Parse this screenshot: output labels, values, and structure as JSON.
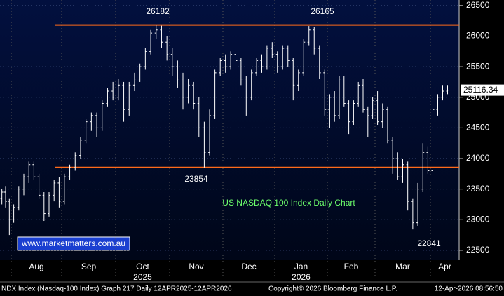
{
  "chart_data": {
    "type": "ohlc",
    "title": "US NASDAQ 100 Index Daily Chart",
    "watermark": "www.marketmatters.com.au",
    "footer": {
      "left": "NDX Index (Nasdaq-100 Index) Graph 217 Daily 12APR2025-12APR2026",
      "center": "Copyright© 2026 Bloomberg Finance L.P.",
      "right": "12-Apr-2026 08:56:50"
    },
    "categories": [
      null,
      "Aug",
      "Sep",
      "Oct",
      "Nov",
      "Dec",
      "Jan",
      "Feb",
      "Mar",
      "Apr"
    ],
    "years": [
      "2025",
      "2026"
    ],
    "bar_color": "#ffffff",
    "level_color": "#ff6a1a",
    "levels": [
      26182,
      23854
    ],
    "peaks": [
      26182,
      26165
    ],
    "troughs": [
      23854,
      22841
    ],
    "ylim": [
      22350,
      26590
    ],
    "yticks": [
      22500,
      23000,
      23500,
      24000,
      24500,
      25000,
      25500,
      26000,
      26500
    ],
    "grid": true,
    "bars": [
      [
        [
          23350,
          23500,
          23250,
          23450
        ],
        [
          23450,
          23550,
          23200,
          23300
        ],
        [
          23300,
          23350,
          22750,
          23000
        ]
      ],
      [
        [
          23000,
          23250,
          22950,
          23200
        ],
        [
          23200,
          23550,
          23150,
          23500
        ],
        [
          23500,
          23750,
          23400,
          23700
        ],
        [
          23700,
          23950,
          23600,
          23900
        ],
        [
          23900,
          23950,
          23650,
          23700
        ],
        [
          23700,
          23750,
          23350,
          23400
        ],
        [
          23400,
          23450,
          22980,
          23100
        ],
        [
          23100,
          23450,
          23050,
          23400
        ],
        [
          23400,
          23650,
          23300,
          23600
        ],
        [
          23600,
          23700,
          23200,
          23300
        ]
      ],
      [
        [
          23300,
          23750,
          23250,
          23700
        ],
        [
          23700,
          23900,
          23650,
          23850
        ],
        [
          23850,
          24100,
          23800,
          24050
        ],
        [
          24050,
          24350,
          24000,
          24300
        ],
        [
          24300,
          24650,
          24250,
          24600
        ],
        [
          24600,
          24750,
          24450,
          24700
        ],
        [
          24700,
          24750,
          24350,
          24500
        ],
        [
          24500,
          24950,
          24450,
          24900
        ],
        [
          24900,
          25150,
          24850,
          25100
        ],
        [
          25100,
          25250,
          24950,
          25000
        ]
      ],
      [
        [
          25000,
          25300,
          24950,
          25200
        ],
        [
          25200,
          25250,
          24600,
          24800
        ],
        [
          24800,
          25250,
          24700,
          25200
        ],
        [
          25200,
          25400,
          25100,
          25300
        ],
        [
          25300,
          25550,
          25250,
          25500
        ],
        [
          25500,
          25800,
          25450,
          25750
        ],
        [
          25750,
          26100,
          25700,
          26050
        ],
        [
          26050,
          26182,
          25950,
          26100
        ],
        [
          26100,
          26170,
          25800,
          25900
        ],
        [
          25900,
          26000,
          25600,
          25700
        ]
      ],
      [
        [
          25700,
          25800,
          25350,
          25500
        ],
        [
          25500,
          25600,
          25150,
          25300
        ],
        [
          25300,
          25400,
          24800,
          25000
        ],
        [
          25000,
          25300,
          24900,
          25200
        ],
        [
          25200,
          25250,
          24800,
          24900
        ],
        [
          24900,
          25000,
          24350,
          24500
        ],
        [
          24500,
          24600,
          23854,
          24100
        ],
        [
          24100,
          24800,
          24050,
          24700
        ],
        [
          24700,
          25450,
          24650,
          25400
        ],
        [
          25400,
          25650,
          25350,
          25600
        ]
      ],
      [
        [
          25600,
          25700,
          25400,
          25500
        ],
        [
          25500,
          25750,
          25450,
          25700
        ],
        [
          25700,
          25800,
          25500,
          25600
        ],
        [
          25600,
          25650,
          25200,
          25300
        ],
        [
          25300,
          25350,
          24700,
          25000
        ],
        [
          25000,
          25450,
          24950,
          25400
        ],
        [
          25400,
          25650,
          25350,
          25600
        ],
        [
          25600,
          25700,
          25400,
          25500
        ],
        [
          25500,
          25850,
          25450,
          25800
        ],
        [
          25800,
          25900,
          25650,
          25700
        ]
      ],
      [
        [
          25700,
          25750,
          25400,
          25500
        ],
        [
          25500,
          25850,
          25450,
          25800
        ],
        [
          25800,
          25850,
          25500,
          25600
        ],
        [
          25600,
          25650,
          24950,
          25200
        ],
        [
          25200,
          25450,
          25100,
          25400
        ],
        [
          25400,
          25950,
          25350,
          25900
        ],
        [
          25900,
          26165,
          25850,
          26100
        ],
        [
          26100,
          26150,
          25700,
          25800
        ],
        [
          25800,
          25850,
          25300,
          25400
        ],
        [
          25400,
          25450,
          24700,
          24800
        ]
      ],
      [
        [
          24800,
          25050,
          24500,
          25000
        ],
        [
          25000,
          25100,
          24600,
          24700
        ],
        [
          24700,
          25350,
          24650,
          25300
        ],
        [
          25300,
          25350,
          24850,
          24900
        ],
        [
          24900,
          24950,
          24400,
          24600
        ],
        [
          24600,
          24950,
          24550,
          24900
        ],
        [
          24900,
          25250,
          24850,
          25200
        ],
        [
          25200,
          25300,
          24750,
          24800
        ],
        [
          24800,
          24850,
          24350,
          24700
        ],
        [
          24700,
          25000,
          24650,
          24950
        ]
      ],
      [
        [
          24950,
          25100,
          24550,
          24600
        ],
        [
          24600,
          24900,
          24500,
          24800
        ],
        [
          24800,
          24850,
          24250,
          24300
        ],
        [
          24300,
          24350,
          23750,
          24000
        ],
        [
          24000,
          24100,
          23650,
          23700
        ],
        [
          23700,
          24000,
          23600,
          23900
        ],
        [
          23900,
          23950,
          23150,
          23300
        ],
        [
          23300,
          23350,
          22841,
          22950
        ],
        [
          22950,
          23600,
          22900,
          23500
        ],
        [
          23500,
          24250,
          23450,
          24100
        ],
        [
          24100,
          24200,
          23750,
          23800
        ]
      ],
      [
        [
          23800,
          24850,
          23750,
          24800
        ],
        [
          24800,
          25050,
          24700,
          25000
        ],
        [
          25000,
          25200,
          24950,
          25100
        ],
        [
          25100,
          25200,
          25050,
          25116.34
        ]
      ]
    ]
  }
}
